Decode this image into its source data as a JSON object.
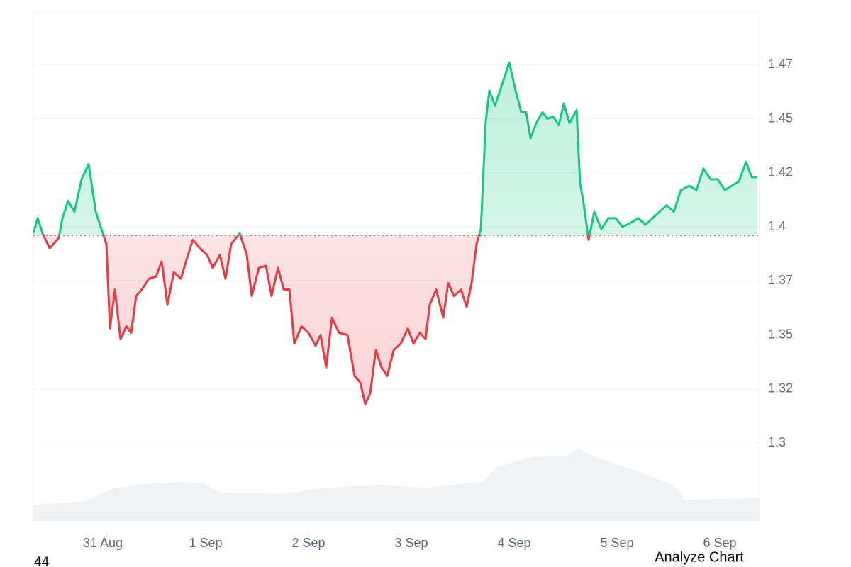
{
  "chart_data": {
    "type": "baseline-line",
    "x": [
      -0.676,
      -0.634,
      -0.586,
      -0.517,
      -0.428,
      -0.393,
      -0.338,
      -0.276,
      -0.207,
      -0.138,
      -0.069,
      0,
      0.034,
      0.069,
      0.117,
      0.172,
      0.228,
      0.276,
      0.324,
      0.379,
      0.448,
      0.517,
      0.572,
      0.628,
      0.69,
      0.759,
      0.828,
      0.876,
      0.945,
      1.014,
      1.069,
      1.138,
      1.193,
      1.248,
      1.331,
      1.4,
      1.448,
      1.517,
      1.586,
      1.641,
      1.703,
      1.759,
      1.814,
      1.862,
      1.931,
      2,
      2.069,
      2.117,
      2.172,
      2.228,
      2.297,
      2.379,
      2.448,
      2.503,
      2.552,
      2.6,
      2.655,
      2.71,
      2.766,
      2.828,
      2.897,
      2.966,
      3.021,
      3.083,
      3.138,
      3.179,
      3.241,
      3.31,
      3.359,
      3.414,
      3.483,
      3.538,
      3.586,
      3.634,
      3.676,
      3.724,
      3.759,
      3.814,
      3.883,
      3.952,
      4.014,
      4.069,
      4.117,
      4.159,
      4.214,
      4.276,
      4.324,
      4.379,
      4.434,
      4.483,
      4.538,
      4.607,
      4.641,
      4.669,
      4.724,
      4.779,
      4.848,
      4.917,
      4.986,
      5.055,
      5.138,
      5.207,
      5.276,
      5.345,
      5.414,
      5.483,
      5.552,
      5.621,
      5.703,
      5.772,
      5.841,
      5.91,
      5.979,
      6.048,
      6.117,
      6.186,
      6.255,
      6.31,
      6.366
    ],
    "values": [
      1.397,
      1.404,
      1.397,
      1.39,
      1.395,
      1.404,
      1.412,
      1.407,
      1.422,
      1.429,
      1.407,
      1.397,
      1.392,
      1.353,
      1.371,
      1.348,
      1.354,
      1.351,
      1.368,
      1.371,
      1.376,
      1.377,
      1.384,
      1.364,
      1.379,
      1.376,
      1.387,
      1.394,
      1.39,
      1.387,
      1.381,
      1.387,
      1.376,
      1.392,
      1.397,
      1.387,
      1.368,
      1.381,
      1.382,
      1.368,
      1.381,
      1.371,
      1.371,
      1.346,
      1.354,
      1.351,
      1.345,
      1.35,
      1.335,
      1.358,
      1.351,
      1.35,
      1.331,
      1.328,
      1.318,
      1.323,
      1.343,
      1.335,
      1.331,
      1.343,
      1.346,
      1.353,
      1.346,
      1.351,
      1.348,
      1.364,
      1.371,
      1.358,
      1.374,
      1.368,
      1.371,
      1.363,
      1.374,
      1.392,
      1.399,
      1.449,
      1.463,
      1.456,
      1.466,
      1.476,
      1.463,
      1.453,
      1.453,
      1.441,
      1.448,
      1.453,
      1.45,
      1.451,
      1.447,
      1.457,
      1.448,
      1.454,
      1.42,
      1.413,
      1.394,
      1.407,
      1.399,
      1.404,
      1.404,
      1.4,
      1.402,
      1.404,
      1.401,
      1.404,
      1.407,
      1.41,
      1.407,
      1.417,
      1.419,
      1.417,
      1.427,
      1.422,
      1.422,
      1.417,
      1.419,
      1.421,
      1.43,
      1.423,
      1.423
    ],
    "baseline": 1.396,
    "up_color": "#16c784",
    "down_color": "#ea3943",
    "volume_x": [
      -0.676,
      -0.172,
      0.103,
      0.379,
      0.759,
      1,
      1.138,
      1.759,
      2.172,
      2.724,
      3.138,
      3.69,
      3.828,
      4.172,
      4.517,
      4.621,
      4.724,
      4.931,
      5.207,
      5.552,
      5.655,
      6.386
    ],
    "volume_values": [
      19,
      23,
      38,
      43,
      46,
      43,
      33,
      32,
      39,
      42,
      39,
      46,
      64,
      75,
      77,
      85,
      79,
      69,
      58,
      42,
      25,
      27
    ],
    "volume_ylim": [
      0,
      100
    ],
    "volume_color": "#eff2f5",
    "xlim": [
      -0.676,
      6.386
    ],
    "xticks": [
      {
        "value": 0,
        "label": "31 Aug"
      },
      {
        "value": 1,
        "label": "1 Sep"
      },
      {
        "value": 2,
        "label": "2 Sep"
      },
      {
        "value": 3,
        "label": "3 Sep"
      },
      {
        "value": 4,
        "label": "4 Sep"
      },
      {
        "value": 5,
        "label": "5 Sep"
      },
      {
        "value": 6,
        "label": "6 Sep"
      }
    ],
    "ylim": [
      1.264,
      1.499
    ],
    "yticks": [
      {
        "value": 1.475,
        "label": "1.47"
      },
      1.45,
      {
        "value": 1.425,
        "label": "1.42"
      },
      1.4,
      {
        "value": 1.375,
        "label": "1.37"
      },
      1.35,
      {
        "value": 1.325,
        "label": "1.32"
      },
      1.3
    ],
    "grid": true
  },
  "footer": {
    "count": "44",
    "button": "Analyze Chart"
  }
}
